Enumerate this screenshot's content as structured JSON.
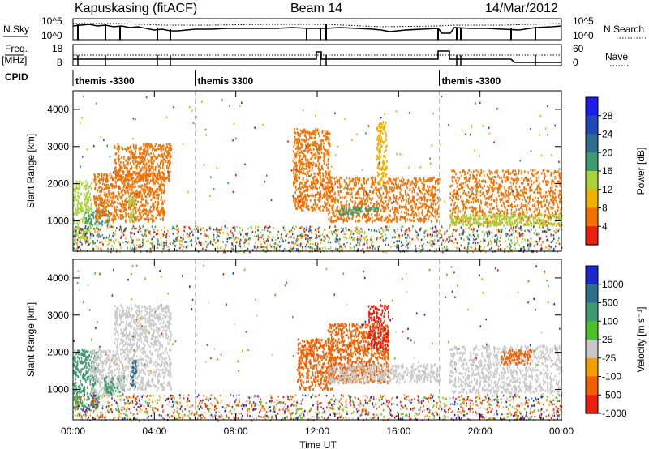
{
  "header": {
    "station": "Kapuskasing (fitACF)",
    "beam": "Beam 14",
    "date": "14/Mar/2012"
  },
  "params": {
    "nsky_label": "N.Sky",
    "nsky_ticks": [
      "10^5",
      "10^0"
    ],
    "nsearch_label": "N.Search",
    "nsearch_ticks": [
      "10^5",
      "10^0"
    ],
    "freq_label": "Freq.",
    "freq_unit": "[MHz]",
    "freq_ticks": [
      "18",
      "8"
    ],
    "nave_label": "Nave",
    "nave_ticks": [
      "60",
      "0"
    ],
    "cpid_label": "CPID",
    "cpid_segments": [
      {
        "label": "themis -3300",
        "start_h": 0
      },
      {
        "label": "themis 3300",
        "start_h": 6
      },
      {
        "label": "themis -3300",
        "start_h": 18
      }
    ]
  },
  "chart_data": [
    {
      "type": "heatmap",
      "title": "",
      "xlabel": "Time UT",
      "ylabel": "Slant Range [km]",
      "xlim": [
        0,
        24
      ],
      "ylim": [
        180,
        4500
      ],
      "x_ticks": [
        "00:00",
        "04:00",
        "08:00",
        "12:00",
        "16:00",
        "20:00",
        "00:00"
      ],
      "y_ticks": [
        "1000",
        "2000",
        "3000",
        "4000"
      ],
      "colorbar": {
        "label": "Power [dB]",
        "ticks": [
          "28",
          "24",
          "20",
          "16",
          "12",
          "8",
          "4"
        ],
        "colors": [
          "#1e1ee8",
          "#1e48b4",
          "#2e6e8c",
          "#3f9b6e",
          "#a8d23a",
          "#f0b000",
          "#f07000",
          "#e82010"
        ],
        "range": [
          0,
          30
        ]
      },
      "echo_regions": [
        {
          "t": [
            0.0,
            0.9
          ],
          "r": [
            500,
            2100
          ],
          "value": 14
        },
        {
          "t": [
            0.5,
            1.8
          ],
          "r": [
            900,
            1300
          ],
          "value": 18
        },
        {
          "t": [
            1.0,
            4.5
          ],
          "r": [
            1000,
            2300
          ],
          "value": 6
        },
        {
          "t": [
            2.0,
            4.8
          ],
          "r": [
            2100,
            3100
          ],
          "value": 5
        },
        {
          "t": [
            2.7,
            3.0
          ],
          "r": [
            1000,
            1700
          ],
          "value": 14
        },
        {
          "t": [
            10.8,
            12.6
          ],
          "r": [
            1300,
            3500
          ],
          "value": 6
        },
        {
          "t": [
            12.5,
            18.0
          ],
          "r": [
            1000,
            2200
          ],
          "value": 6
        },
        {
          "t": [
            13.0,
            15.0
          ],
          "r": [
            1200,
            1400
          ],
          "value": 16
        },
        {
          "t": [
            14.9,
            15.4
          ],
          "r": [
            2000,
            3700
          ],
          "value": 9
        },
        {
          "t": [
            18.5,
            24.0
          ],
          "r": [
            900,
            2400
          ],
          "value": 5
        },
        {
          "t": [
            18.5,
            24.0
          ],
          "r": [
            900,
            1200
          ],
          "value": 12
        }
      ]
    },
    {
      "type": "heatmap",
      "title": "",
      "xlabel": "Time UT",
      "ylabel": "Slant Range [km]",
      "xlim": [
        0,
        24
      ],
      "ylim": [
        180,
        4500
      ],
      "x_ticks": [
        "00:00",
        "04:00",
        "08:00",
        "12:00",
        "16:00",
        "20:00",
        "00:00"
      ],
      "y_ticks": [
        "1000",
        "2000",
        "3000",
        "4000"
      ],
      "colorbar": {
        "label": "Velocity [m s⁻¹]",
        "ticks": [
          "1000",
          "500",
          "100",
          "25",
          "-25",
          "-100",
          "-500",
          "-1000"
        ],
        "colors": [
          "#1e28c8",
          "#2e6e8c",
          "#3f9b6e",
          "#4cc028",
          "#c8c8c8",
          "#f0a000",
          "#f06000",
          "#e82010"
        ],
        "range": [
          -1000,
          1000
        ]
      },
      "echo_regions": [
        {
          "t": [
            0.0,
            1.2
          ],
          "r": [
            500,
            2100
          ],
          "value": 150
        },
        {
          "t": [
            0.8,
            2.0
          ],
          "r": [
            800,
            2100
          ],
          "value": 0
        },
        {
          "t": [
            1.5,
            2.5
          ],
          "r": [
            900,
            1400
          ],
          "value": 200
        },
        {
          "t": [
            2.0,
            4.8
          ],
          "r": [
            1000,
            3300
          ],
          "value": 0
        },
        {
          "t": [
            2.8,
            3.1
          ],
          "r": [
            1100,
            1800
          ],
          "value": 900
        },
        {
          "t": [
            11.0,
            12.8
          ],
          "r": [
            1000,
            2400
          ],
          "value": -150
        },
        {
          "t": [
            12.5,
            15.5
          ],
          "r": [
            1200,
            2800
          ],
          "value": -120
        },
        {
          "t": [
            14.5,
            15.5
          ],
          "r": [
            2100,
            3300
          ],
          "value": -700
        },
        {
          "t": [
            12.5,
            18.0
          ],
          "r": [
            1200,
            1700
          ],
          "value": 0
        },
        {
          "t": [
            18.5,
            24.0
          ],
          "r": [
            900,
            2200
          ],
          "value": 0
        },
        {
          "t": [
            21.0,
            22.5
          ],
          "r": [
            1700,
            2100
          ],
          "value": -150
        }
      ]
    }
  ]
}
